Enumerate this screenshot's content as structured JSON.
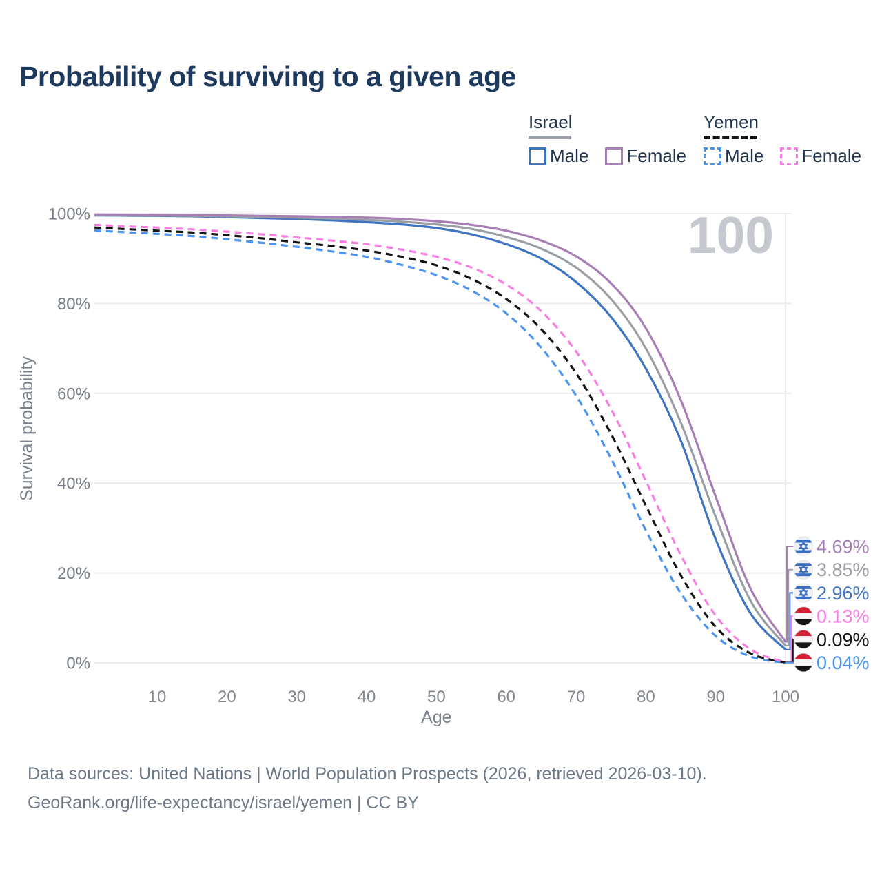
{
  "title": "Probability of surviving to a given age",
  "watermark": "100",
  "legend": {
    "groups": [
      {
        "country": "Israel",
        "line_style": "solid",
        "underline_color": "#9aa0a6",
        "items": [
          {
            "label": "Male",
            "color": "#3e74c2",
            "dash": false
          },
          {
            "label": "Female",
            "color": "#ab7fba",
            "dash": false
          }
        ]
      },
      {
        "country": "Yemen",
        "line_style": "dashed",
        "underline_color": "#141414",
        "items": [
          {
            "label": "Male",
            "color": "#4b94f0",
            "dash": true
          },
          {
            "label": "Female",
            "color": "#f97ee3",
            "dash": true
          }
        ]
      }
    ]
  },
  "chart_data": {
    "type": "line",
    "title": "Probability of surviving to a given age",
    "xlabel": "Age",
    "ylabel": "Survival probability",
    "xlim": [
      0,
      100
    ],
    "ylim": [
      0,
      100
    ],
    "grid": "horizontal",
    "x_ticks": [
      10,
      20,
      30,
      40,
      50,
      60,
      70,
      80,
      90,
      100
    ],
    "y_ticks": [
      {
        "value": 0,
        "label": "0%"
      },
      {
        "value": 20,
        "label": "20%"
      },
      {
        "value": 40,
        "label": "40%"
      },
      {
        "value": 60,
        "label": "60%"
      },
      {
        "value": 80,
        "label": "80%"
      },
      {
        "value": 100,
        "label": "100%"
      }
    ],
    "series": [
      {
        "id": "israel-female",
        "country": "Israel",
        "name": "Female",
        "color": "#a77fb5",
        "dash": false,
        "end_label": "4.69%",
        "flag": "israel",
        "points": [
          [
            1,
            99.8
          ],
          [
            5,
            99.75
          ],
          [
            10,
            99.7
          ],
          [
            15,
            99.65
          ],
          [
            20,
            99.6
          ],
          [
            25,
            99.5
          ],
          [
            30,
            99.4
          ],
          [
            35,
            99.25
          ],
          [
            40,
            99.1
          ],
          [
            45,
            98.8
          ],
          [
            50,
            98.3
          ],
          [
            55,
            97.5
          ],
          [
            60,
            96.2
          ],
          [
            65,
            94.0
          ],
          [
            70,
            90.5
          ],
          [
            75,
            84.5
          ],
          [
            80,
            74.5
          ],
          [
            85,
            58.5
          ],
          [
            90,
            37.0
          ],
          [
            95,
            16.5
          ],
          [
            100,
            4.69
          ]
        ]
      },
      {
        "id": "israel",
        "country": "Israel",
        "name": "Israel",
        "color": "#9a9ea5",
        "dash": false,
        "end_label": "3.85%",
        "flag": "israel",
        "points": [
          [
            1,
            99.7
          ],
          [
            5,
            99.65
          ],
          [
            10,
            99.6
          ],
          [
            15,
            99.5
          ],
          [
            20,
            99.4
          ],
          [
            25,
            99.25
          ],
          [
            30,
            99.1
          ],
          [
            35,
            98.9
          ],
          [
            40,
            98.6
          ],
          [
            45,
            98.2
          ],
          [
            50,
            97.6
          ],
          [
            55,
            96.6
          ],
          [
            60,
            94.8
          ],
          [
            65,
            92.2
          ],
          [
            70,
            88.0
          ],
          [
            75,
            81.0
          ],
          [
            80,
            70.0
          ],
          [
            85,
            53.5
          ],
          [
            90,
            32.5
          ],
          [
            95,
            13.8
          ],
          [
            100,
            3.85
          ]
        ]
      },
      {
        "id": "israel-male",
        "country": "Israel",
        "name": "Male",
        "color": "#3e74c2",
        "dash": false,
        "end_label": "2.96%",
        "flag": "israel",
        "points": [
          [
            1,
            99.6
          ],
          [
            5,
            99.55
          ],
          [
            10,
            99.5
          ],
          [
            15,
            99.4
          ],
          [
            20,
            99.2
          ],
          [
            25,
            99.0
          ],
          [
            30,
            98.8
          ],
          [
            35,
            98.5
          ],
          [
            40,
            98.1
          ],
          [
            45,
            97.6
          ],
          [
            50,
            96.8
          ],
          [
            55,
            95.4
          ],
          [
            60,
            93.2
          ],
          [
            65,
            90.0
          ],
          [
            70,
            84.8
          ],
          [
            75,
            77.0
          ],
          [
            80,
            65.5
          ],
          [
            85,
            49.5
          ],
          [
            90,
            27.5
          ],
          [
            95,
            11.0
          ],
          [
            100,
            2.96
          ]
        ]
      },
      {
        "id": "yemen-female",
        "country": "Yemen",
        "name": "Female",
        "color": "#f97ee3",
        "dash": true,
        "end_label": "0.13%",
        "flag": "yemen",
        "points": [
          [
            1,
            97.5
          ],
          [
            5,
            97.2
          ],
          [
            10,
            96.9
          ],
          [
            15,
            96.5
          ],
          [
            20,
            96.0
          ],
          [
            25,
            95.4
          ],
          [
            30,
            94.7
          ],
          [
            35,
            94.0
          ],
          [
            40,
            93.2
          ],
          [
            45,
            92.0
          ],
          [
            50,
            90.4
          ],
          [
            55,
            88.0
          ],
          [
            60,
            84.2
          ],
          [
            65,
            78.3
          ],
          [
            70,
            69.3
          ],
          [
            75,
            56.5
          ],
          [
            80,
            40.5
          ],
          [
            85,
            24.0
          ],
          [
            90,
            10.5
          ],
          [
            95,
            3.0
          ],
          [
            100,
            0.13
          ]
        ]
      },
      {
        "id": "yemen",
        "country": "Yemen",
        "name": "Yemen",
        "color": "#141414",
        "dash": true,
        "end_label": "0.09%",
        "flag": "yemen",
        "points": [
          [
            1,
            96.9
          ],
          [
            5,
            96.6
          ],
          [
            10,
            96.2
          ],
          [
            15,
            95.8
          ],
          [
            20,
            95.2
          ],
          [
            25,
            94.5
          ],
          [
            30,
            93.6
          ],
          [
            35,
            92.8
          ],
          [
            40,
            91.8
          ],
          [
            45,
            90.4
          ],
          [
            50,
            88.5
          ],
          [
            55,
            85.5
          ],
          [
            60,
            81.0
          ],
          [
            65,
            74.3
          ],
          [
            70,
            64.5
          ],
          [
            75,
            51.0
          ],
          [
            80,
            35.0
          ],
          [
            85,
            19.5
          ],
          [
            90,
            8.0
          ],
          [
            95,
            2.1
          ],
          [
            100,
            0.09
          ]
        ]
      },
      {
        "id": "yemen-male",
        "country": "Yemen",
        "name": "Male",
        "color": "#4b94f0",
        "dash": true,
        "end_label": "0.04%",
        "flag": "yemen",
        "points": [
          [
            1,
            96.3
          ],
          [
            5,
            95.9
          ],
          [
            10,
            95.5
          ],
          [
            15,
            95.0
          ],
          [
            20,
            94.3
          ],
          [
            25,
            93.5
          ],
          [
            30,
            92.6
          ],
          [
            35,
            91.6
          ],
          [
            40,
            90.4
          ],
          [
            45,
            88.6
          ],
          [
            50,
            86.3
          ],
          [
            55,
            82.9
          ],
          [
            60,
            77.8
          ],
          [
            65,
            70.2
          ],
          [
            70,
            59.5
          ],
          [
            75,
            45.5
          ],
          [
            80,
            29.5
          ],
          [
            85,
            15.5
          ],
          [
            90,
            6.0
          ],
          [
            95,
            1.4
          ],
          [
            100,
            0.04
          ]
        ]
      }
    ],
    "flag_colors": {
      "israel_blue": "#3a6cc0",
      "yemen_red": "#d21f33",
      "yemen_black": "#141414"
    }
  },
  "footer": {
    "line1": "Data sources: United Nations | World Population Prospects (2026, retrieved 2026-03-10).",
    "line2": "GeoRank.org/life-expectancy/israel/yemen | CC BY"
  }
}
